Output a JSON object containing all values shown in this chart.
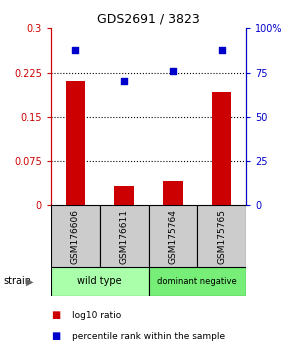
{
  "title": "GDS2691 / 3823",
  "samples": [
    "GSM176606",
    "GSM176611",
    "GSM175764",
    "GSM175765"
  ],
  "log10_ratio": [
    0.21,
    0.033,
    0.042,
    0.192
  ],
  "percentile_rank": [
    88,
    70,
    76,
    88
  ],
  "bar_color": "#cc0000",
  "dot_color": "#0000cc",
  "left_ylim": [
    0,
    0.3
  ],
  "right_ylim": [
    0,
    100
  ],
  "left_yticks": [
    0,
    0.075,
    0.15,
    0.225,
    0.3
  ],
  "left_yticklabels": [
    "0",
    "0.075",
    "0.15",
    "0.225",
    "0.3"
  ],
  "right_yticks": [
    0,
    25,
    50,
    75,
    100
  ],
  "right_yticklabels": [
    "0",
    "25",
    "50",
    "75",
    "100%"
  ],
  "hlines": [
    0.075,
    0.15,
    0.225
  ],
  "groups": [
    {
      "label": "wild type",
      "indices": [
        0,
        1
      ],
      "color": "#aaffaa"
    },
    {
      "label": "dominant negative",
      "indices": [
        2,
        3
      ],
      "color": "#77ee77"
    }
  ],
  "strain_label": "strain",
  "legend_bar_label": "log10 ratio",
  "legend_dot_label": "percentile rank within the sample",
  "sample_box_color": "#cccccc",
  "plot_bg_color": "#ffffff"
}
